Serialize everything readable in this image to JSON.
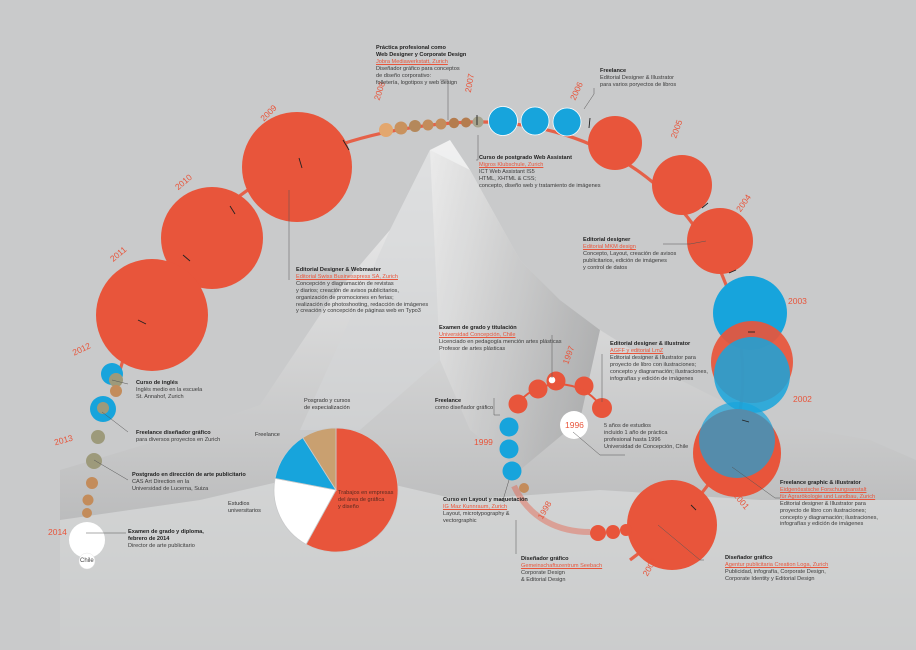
{
  "years": {
    "y1996": "1996",
    "y1997": "1997",
    "y1998": "1998",
    "y1999": "1999",
    "y2000": "2000",
    "y2001": "2001",
    "y2002": "2002",
    "y2003": "2003",
    "y2004": "2004",
    "y2005": "2005",
    "y2006": "2006",
    "y2007": "2007",
    "y2008": "2008",
    "y2009": "2009",
    "y2010": "2010",
    "y2011": "2011",
    "y2012": "2012",
    "y2013": "2013",
    "y2014": "2014"
  },
  "chile_label": "Chile",
  "entries": {
    "practica": {
      "title": "Práctica profesional como",
      "title2": "Web Designer y Corporate Design",
      "org": "Jobra Mediawerkstatt, Zurich",
      "l1": "Diseñador gráfico para conceptos",
      "l2": "de diseño corporativo:",
      "l3": "folletería, logotipos y web design"
    },
    "freelance_top": {
      "title": "Freelance",
      "l1": "Editorial Designer & Illustrator",
      "l2": "para varios poryectos de libros"
    },
    "postgrado_web": {
      "title": "Curso de postgrado Web Assistant",
      "org": "Migros Klubschule, Zurich",
      "l1": "ICT Web Assistant IS5",
      "l2": "HTML, XHTML & CSS;",
      "l3": "concepto, diseño web y tratamiento de imágenes"
    },
    "mkm": {
      "title": "Editorial designer",
      "org": "Editorial MKM design",
      "l1": "Concepto, Layout, creación de avisos",
      "l2": "publicitarios, edición de imágenes",
      "l3": "y control de datos"
    },
    "swiss": {
      "title": "Editorial Designer & Webmaster",
      "org": "Editorial Swiss Businesspress SA, Zurich",
      "l1": "Concepción y diagramación de revistas",
      "l2": "y diarios; creación de avisos publicitarios,",
      "l3": "organización de promociones en ferias;",
      "l4": "realización de photoshooting, redacción de imágenes",
      "l5": "y creación y concepción de páginas web en Typo3"
    },
    "examen_grado": {
      "title": "Examen de grado y titulación",
      "org": "Universidad Concepción, Chile",
      "l1": "Licenciado en pedagogía mención artes plásticas",
      "l2": "Profesor de artes plásticas"
    },
    "agff": {
      "title": "Editorial designer & illustrator",
      "org": "AGFF y editorial LmZ",
      "l1": "Editorial designer & Illustrator para",
      "l2": "proyecto de libro con ilustraciones;",
      "l3": "concepto y diagramación; ilustraciones,",
      "l4": "infografías y edición de imágenes"
    },
    "ingles": {
      "title": "Curso de inglés",
      "l1": "Inglés medio en la escuela",
      "l2": "St. Annahof, Zurich"
    },
    "freelance_graf": {
      "title": "Freelance diseñador gráfico",
      "l1": "para diversos proyectos en Zurich"
    },
    "freelance_mid": {
      "title": "Freelance",
      "l1": "como diseñador gráfico"
    },
    "estudios": {
      "l1": "5 años de estudios",
      "l2": "incluido 1 año de práctica",
      "l3": "profesional hasta 1996",
      "l4": "Universidad de Concepción, Chile"
    },
    "postgrado_pub": {
      "title": "Postgrado en dirección de arte publicitario",
      "l1": "CAS Art Direction en la",
      "l2": "Universidad de Lucerna, Suiza"
    },
    "examen_dipl": {
      "title": "Examen de grado y diploma,",
      "title2": "febrero de 2014",
      "l1": "Director de arte publicitario"
    },
    "layout": {
      "title": "Curso en Layout y maquetación",
      "org": "IG Maz Kunnraum, Zurich",
      "l1": "Layout, microtypography &",
      "l2": "vectorgraphic"
    },
    "freelance_graphic": {
      "title": "Freelance graphic & illustrator",
      "org": "Eidgenössische Forschungsanstalt",
      "org2": "für Agrarökologie und Landbau, Zurich",
      "l1": "Editorial designer & Illustrator para",
      "l2": "proyecto de libro con ilustraciones;",
      "l3": "concepto y diagramación; ilustraciones,",
      "l4": "infografías y edición de imágenes"
    },
    "seebach": {
      "title": "Diseñador gráfico",
      "org": "Gemeinschaftszentrum Seebach",
      "l1": "Corporate Design",
      "l2": "& Editorial Design"
    },
    "loga": {
      "title": "Diseñador gráfico",
      "org": "Agentur publicitaria Creation Loga, Zurich",
      "l1": "Publicidad, infografía, Corporate Design,",
      "l2": "Corporate Identity y Editorial Design"
    }
  },
  "pie": {
    "postgrado_label": "Posgrado y cursos",
    "postgrado_label2": "de especialización",
    "freelance_label": "Freelance",
    "estudios_label": "Estudios",
    "estudios_label2": "universitarios",
    "trabajos_label": "Trabajos en empresas",
    "trabajos_label2": "del área de gráfica",
    "trabajos_label3": "y diseño"
  },
  "chart_data": {
    "type": "pie",
    "title": "",
    "categories": [
      "Trabajos en empresas del área de gráfica y diseño",
      "Estudios universitarios",
      "Freelance",
      "Posgrado y cursos de especialización"
    ],
    "values": [
      58,
      20,
      13,
      9
    ],
    "colors": [
      "#e8553b",
      "#ffffff",
      "#17a4dc",
      "#c9a070"
    ]
  },
  "colors": {
    "orange": "#e8553b",
    "blue": "#17a4dc",
    "tan": "#c9a070",
    "olive": "#9d9a7b",
    "grey_bg": "#c9cacb"
  }
}
